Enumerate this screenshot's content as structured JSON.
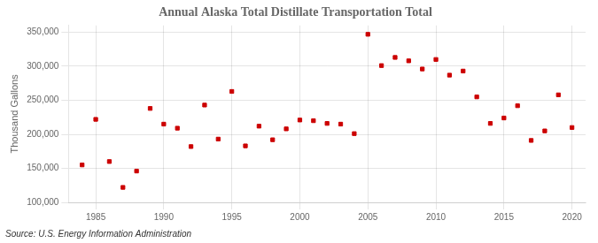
{
  "chart_data": {
    "type": "scatter",
    "title": "Annual Alaska Total Distillate Transportation Total",
    "ylabel": "Thousand Gallons",
    "annotation": "Source: U.S. Energy Information Administration",
    "x": [
      1984,
      1985,
      1986,
      1987,
      1988,
      1989,
      1990,
      1991,
      1992,
      1993,
      1994,
      1995,
      1996,
      1997,
      1998,
      1999,
      2000,
      2001,
      2002,
      2003,
      2004,
      2005,
      2006,
      2007,
      2008,
      2009,
      2010,
      2011,
      2012,
      2013,
      2014,
      2015,
      2016,
      2017,
      2018,
      2019,
      2020
    ],
    "values": [
      155000,
      222000,
      160000,
      122000,
      146000,
      238000,
      215000,
      209000,
      182000,
      243000,
      193000,
      263000,
      183000,
      212000,
      192000,
      208000,
      221000,
      220000,
      216000,
      215000,
      201000,
      347000,
      301000,
      313000,
      308000,
      296000,
      310000,
      287000,
      293000,
      255000,
      216000,
      224000,
      242000,
      191000,
      205000,
      258000,
      210000
    ],
    "color": "#cc0000",
    "marker": "square",
    "xlim": [
      1983,
      2021
    ],
    "xticks": [
      1985,
      1990,
      1995,
      2000,
      2005,
      2010,
      2015,
      2020
    ],
    "ylim": [
      100000,
      360000
    ],
    "yticks": [
      {
        "value": 100000,
        "label": "100,000"
      },
      {
        "value": 150000,
        "label": "150,000"
      },
      {
        "value": 200000,
        "label": "200,000"
      },
      {
        "value": 250000,
        "label": "250,000"
      },
      {
        "value": 300000,
        "label": "300,000"
      },
      {
        "value": 350000,
        "label": "350,000"
      }
    ],
    "grid": true
  }
}
